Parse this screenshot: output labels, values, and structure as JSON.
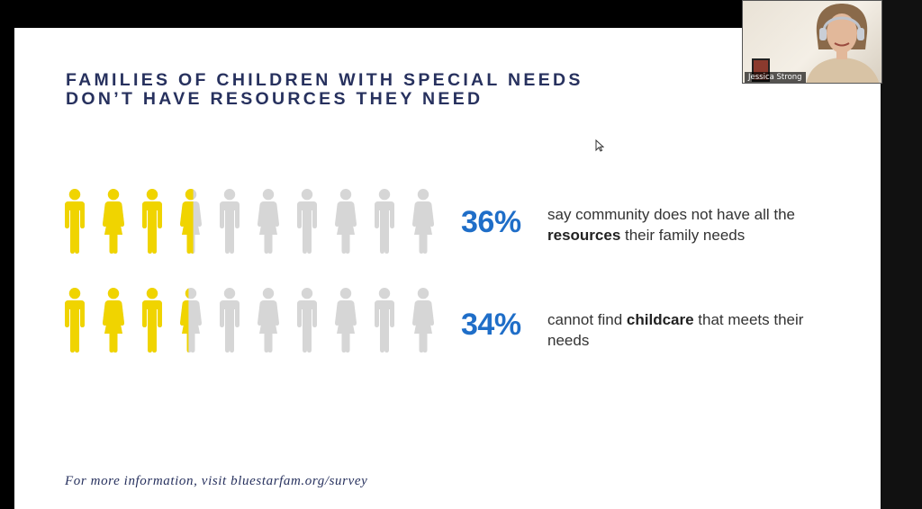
{
  "slide": {
    "title_line1": "FAMILIES OF CHILDREN WITH SPECIAL NEEDS",
    "title_line2": "DON’T HAVE RESOURCES THEY NEED",
    "footer": "For more information, visit bluestarfam.org/survey"
  },
  "stats": [
    {
      "percent": "36%",
      "fill_fraction": 0.36,
      "text_before": "say community does not have all the ",
      "bold": "resources",
      "text_after": " their family needs"
    },
    {
      "percent": "34%",
      "fill_fraction": 0.34,
      "text_before": "cannot find ",
      "bold": "childcare",
      "text_after": " that meets their needs"
    }
  ],
  "colors": {
    "filled": "#f0d400",
    "empty": "#d6d6d6",
    "accent": "#1f6ec8",
    "title": "#27315e"
  },
  "icons": {
    "figure_sequence": [
      "male-figure-icon",
      "female-figure-icon",
      "male-figure-icon",
      "female-figure-icon",
      "male-figure-icon",
      "female-figure-icon",
      "male-figure-icon",
      "female-figure-icon",
      "male-figure-icon",
      "female-figure-icon"
    ]
  },
  "webcam": {
    "name": "Jessica Strong"
  }
}
